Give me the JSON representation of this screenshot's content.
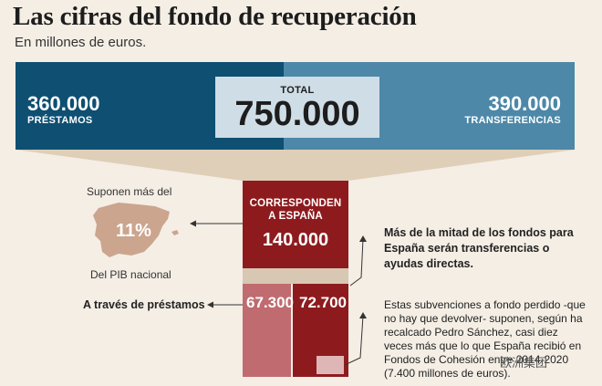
{
  "header": {
    "title": "Las cifras del fondo de recuperación",
    "subtitle": "En millones de euros."
  },
  "chart_data": {
    "type": "bar",
    "title": "Las cifras del fondo de recuperación",
    "unit": "millones de euros",
    "total": {
      "label": "TOTAL",
      "value": 750000,
      "value_text": "750.000"
    },
    "split": [
      {
        "name": "PRÉSTAMOS",
        "value": 360000,
        "value_text": "360.000"
      },
      {
        "name": "TRANSFERENCIAS",
        "value": 390000,
        "value_text": "390.000"
      }
    ],
    "spain": {
      "label_line1": "CORRESPONDEN",
      "label_line2": "A ESPAÑA",
      "value": 140000,
      "value_text": "140.000",
      "parts": [
        {
          "name": "préstamos",
          "value": 67300,
          "value_text": "67.300"
        },
        {
          "name": "transferencias",
          "value": 72700,
          "value_text": "72.700"
        }
      ]
    }
  },
  "annotations": {
    "pib_top": "Suponen más del",
    "pib_pct": "11%",
    "pib_bottom": "Del PIB nacional",
    "via_loans": "A través de préstamos",
    "note1": "Más de la mitad de los fondos para España serán transferencias o ayudas directas.",
    "note2": "Estas subvenciones a fondo perdido -que no hay que devolver- suponen, según ha recalcado Pedro Sánchez, casi diez veces más que lo que España recibió en Fondos de Cohesión entre 2014-2020 (7.400 millones de euros).",
    "watermark": "欧洲集团"
  },
  "colors": {
    "loans_dark": "#0e4f72",
    "transfers_light": "#4d88a8",
    "spain_red": "#8d1b1e",
    "loan_pink": "#bf6b6f",
    "funnel": "#e0cfb8"
  }
}
